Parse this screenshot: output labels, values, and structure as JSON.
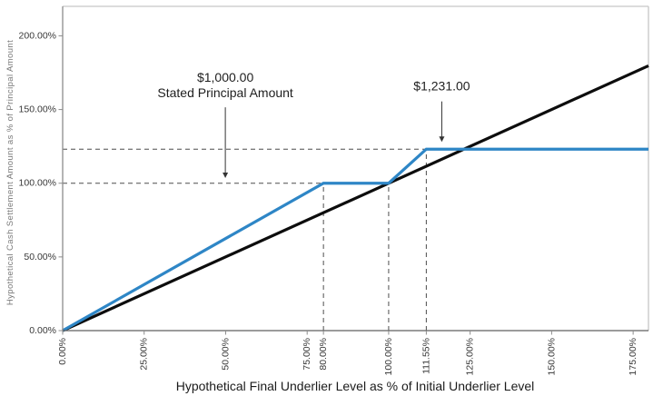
{
  "chart_data": {
    "type": "line",
    "title": "",
    "xlabel": "Hypothetical Final Underlier Level as % of Initial Underlier Level",
    "ylabel": "Hypothetical Cash Settlement Amount as % of Principal Amount",
    "xlim": [
      0,
      179.7
    ],
    "ylim": [
      0,
      220
    ],
    "grid": false,
    "legend": false,
    "x_ticks": [
      {
        "value": 0,
        "label": "0.00%"
      },
      {
        "value": 25,
        "label": "25.00%"
      },
      {
        "value": 50,
        "label": "50.00%"
      },
      {
        "value": 75,
        "label": "75.00%"
      },
      {
        "value": 80,
        "label": "80.00%"
      },
      {
        "value": 100,
        "label": "100.00%"
      },
      {
        "value": 111.55,
        "label": "111.55%"
      },
      {
        "value": 125,
        "label": "125.00%"
      },
      {
        "value": 150,
        "label": "150.00%"
      },
      {
        "value": 175,
        "label": "175.00%"
      }
    ],
    "y_ticks": [
      {
        "value": 0,
        "label": "0.00%"
      },
      {
        "value": 50,
        "label": "50.00%"
      },
      {
        "value": 100,
        "label": "100.00%"
      },
      {
        "value": 150,
        "label": "150.00%"
      },
      {
        "value": 200,
        "label": "200.00%"
      }
    ],
    "series": [
      {
        "name": "final-underlier-level-line",
        "color": "#0d0d0d",
        "stroke_width": 3.2,
        "points": [
          [
            0,
            0
          ],
          [
            179.7,
            179.7
          ]
        ]
      },
      {
        "name": "cash-settlement-amount-line",
        "color": "#2E86C6",
        "stroke_width": 3.2,
        "points": [
          [
            0,
            0
          ],
          [
            80,
            100
          ],
          [
            100,
            100
          ],
          [
            111.55,
            123.1
          ],
          [
            179.7,
            123.1
          ]
        ]
      }
    ],
    "reference_lines": {
      "color": "#4d4d4d",
      "dash": "5,4",
      "horizontal": [
        {
          "y": 100,
          "x_from": 0,
          "x_to": 100
        },
        {
          "y": 123.1,
          "x_from": 0,
          "x_to": 111.55
        }
      ],
      "vertical": [
        {
          "x": 80,
          "y_from": 0,
          "y_to": 100
        },
        {
          "x": 100,
          "y_from": 0,
          "y_to": 100
        },
        {
          "x": 111.55,
          "y_from": 0,
          "y_to": 123.1
        }
      ]
    },
    "annotations": [
      {
        "id": "stated-principal-annotation",
        "lines": [
          "$1,000.00",
          "Stated Principal Amount"
        ],
        "x": 49.9,
        "text_y": 168.8,
        "arrow_from_y": 151.5,
        "arrow_to_y": 103.5
      },
      {
        "id": "cap-amount-annotation",
        "lines": [
          "$1,231.00"
        ],
        "x": 116.3,
        "text_y": 163.0,
        "arrow_from_y": 155.5,
        "arrow_to_y": 128.0
      }
    ],
    "axis_colors": {
      "left": "#8c8c8c",
      "bottom": "#5f5f5f",
      "top": "#c6c6c6",
      "right": "#c6c6c6",
      "tick": "#8c8c8c"
    }
  }
}
